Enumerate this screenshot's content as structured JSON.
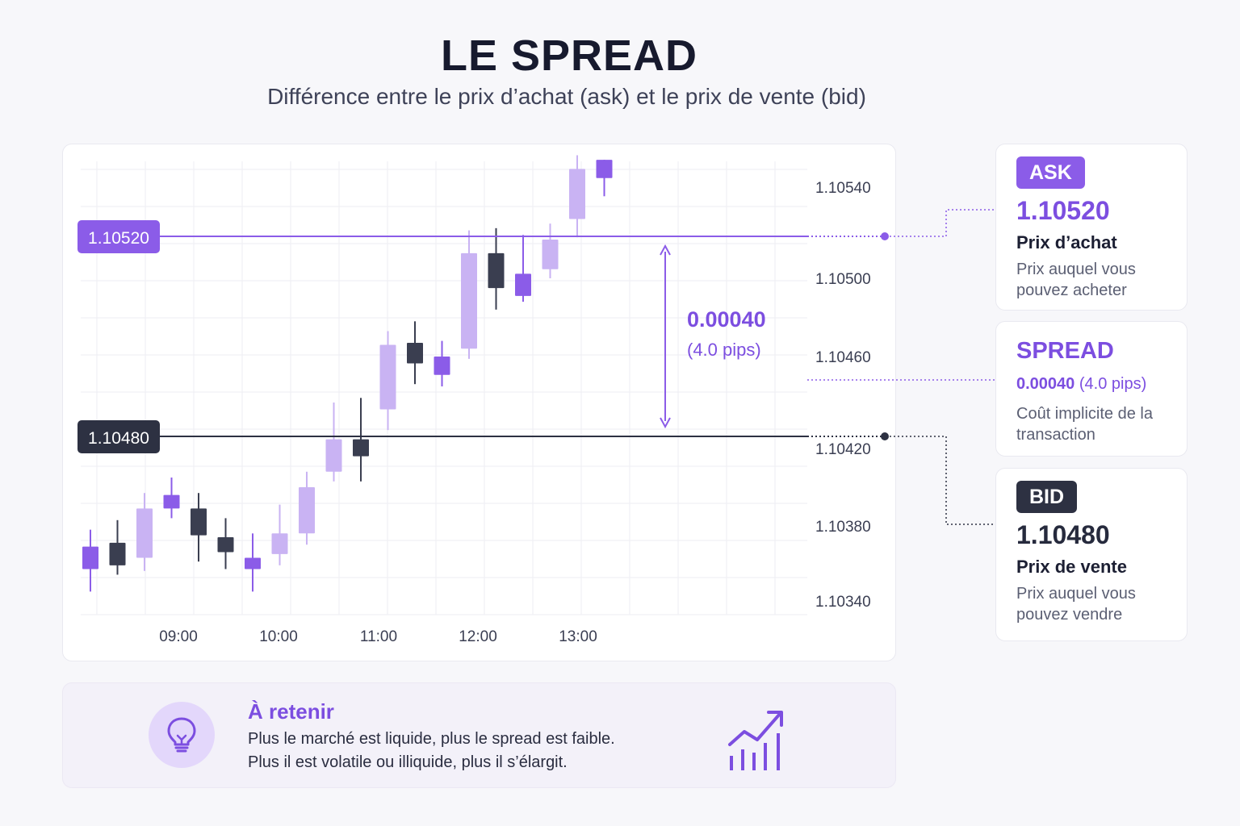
{
  "header": {
    "title": "LE SPREAD",
    "subtitle": "Différence entre le prix d’achat (ask) et le prix de vente (bid)"
  },
  "colors": {
    "accent": "#8b5ce8",
    "accent_dark": "#7c4ee0",
    "accent_light": "#c9b3f3",
    "dark": "#2d3142",
    "grid": "#eeeef3"
  },
  "chart_data": {
    "type": "candlestick",
    "title": "",
    "xlabel": "",
    "ylabel": "",
    "x_ticks": [
      "09:00",
      "10:00",
      "11:00",
      "12:00",
      "13:00"
    ],
    "y_ticks": [
      {
        "value": 1.1054,
        "label": "1.10540"
      },
      {
        "value": 1.105,
        "label": "1.10500"
      },
      {
        "value": 1.1046,
        "label": "1.10460"
      },
      {
        "value": 1.1042,
        "label": "1.10420"
      },
      {
        "value": 1.1038,
        "label": "1.10380"
      },
      {
        "value": 1.1034,
        "label": "1.10340"
      }
    ],
    "ask": {
      "value": 1.1052,
      "label": "1.10520"
    },
    "bid": {
      "value": 1.1048,
      "label": "1.10480"
    },
    "spread": {
      "value": "0.00040",
      "pips": "(4.0 pips)"
    },
    "candles": [
      {
        "open": 1.10357,
        "close": 1.10369,
        "high": 1.10378,
        "low": 1.10345,
        "style": "medium"
      },
      {
        "open": 1.10371,
        "close": 1.10359,
        "high": 1.10383,
        "low": 1.10354,
        "style": "dark"
      },
      {
        "open": 1.10363,
        "close": 1.10389,
        "high": 1.10397,
        "low": 1.10356,
        "style": "light"
      },
      {
        "open": 1.10389,
        "close": 1.10396,
        "high": 1.10405,
        "low": 1.10384,
        "style": "medium"
      },
      {
        "open": 1.10389,
        "close": 1.10375,
        "high": 1.10397,
        "low": 1.10361,
        "style": "dark"
      },
      {
        "open": 1.10374,
        "close": 1.10366,
        "high": 1.10384,
        "low": 1.10357,
        "style": "dark"
      },
      {
        "open": 1.10357,
        "close": 1.10363,
        "high": 1.10376,
        "low": 1.10345,
        "style": "medium"
      },
      {
        "open": 1.10365,
        "close": 1.10376,
        "high": 1.10391,
        "low": 1.10359,
        "style": "light"
      },
      {
        "open": 1.10376,
        "close": 1.104,
        "high": 1.10408,
        "low": 1.1037,
        "style": "light"
      },
      {
        "open": 1.10408,
        "close": 1.10424,
        "high": 1.1044,
        "low": 1.10403,
        "style": "light"
      },
      {
        "open": 1.10424,
        "close": 1.10416,
        "high": 1.10442,
        "low": 1.10403,
        "style": "dark"
      },
      {
        "open": 1.10437,
        "close": 1.10466,
        "high": 1.10473,
        "low": 1.10428,
        "style": "light"
      },
      {
        "open": 1.10467,
        "close": 1.10457,
        "high": 1.10478,
        "low": 1.10448,
        "style": "dark"
      },
      {
        "open": 1.10452,
        "close": 1.1046,
        "high": 1.10468,
        "low": 1.10447,
        "style": "medium"
      },
      {
        "open": 1.10464,
        "close": 1.10511,
        "high": 1.10521,
        "low": 1.10459,
        "style": "light"
      },
      {
        "open": 1.10511,
        "close": 1.10495,
        "high": 1.10522,
        "low": 1.10484,
        "style": "dark"
      },
      {
        "open": 1.10491,
        "close": 1.10502,
        "high": 1.10519,
        "low": 1.10488,
        "style": "medium"
      },
      {
        "open": 1.10504,
        "close": 1.10517,
        "high": 1.10524,
        "low": 1.105,
        "style": "light"
      },
      {
        "open": 1.10526,
        "close": 1.10548,
        "high": 1.10554,
        "low": 1.10518,
        "style": "light"
      },
      {
        "open": 1.10544,
        "close": 1.10552,
        "high": 1.10552,
        "low": 1.10536,
        "style": "medium"
      }
    ]
  },
  "ask_card": {
    "badge": "ASK",
    "price": "1.10520",
    "label": "Prix d’achat",
    "desc": "Prix auquel vous pouvez acheter"
  },
  "spread_card": {
    "title": "SPREAD",
    "value": "0.00040",
    "pips": "(4.0 pips)",
    "desc": "Coût implicite de la transaction"
  },
  "bid_card": {
    "badge": "BID",
    "price": "1.10480",
    "label": "Prix de vente",
    "desc": "Prix auquel vous pouvez vendre"
  },
  "tip": {
    "title": "À retenir",
    "line1": "Plus le marché est liquide, plus le spread est faible.",
    "line2": "Plus il est volatile ou illiquide, plus il s’élargit.",
    "icon": "lightbulb-icon",
    "icon2": "growth-chart-icon"
  }
}
